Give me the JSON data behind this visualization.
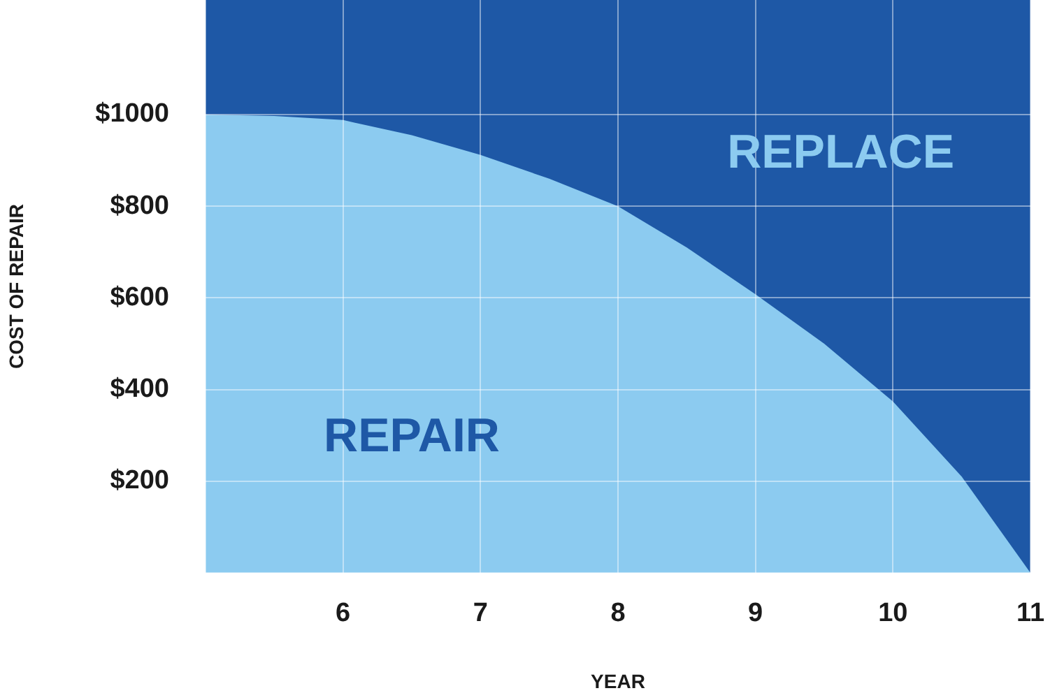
{
  "chart_data": {
    "type": "area",
    "xlabel": "YEAR",
    "ylabel": "COST OF REPAIR",
    "x": [
      5,
      5.5,
      6,
      6.5,
      7,
      7.5,
      8,
      8.5,
      9,
      9.5,
      10,
      10.5,
      11
    ],
    "series": [
      {
        "color": "#8ccbf0",
        "values": [
          1000,
          997,
          988,
          955,
          912,
          860,
          800,
          710,
          608,
          500,
          374,
          210,
          0
        ]
      }
    ],
    "xlim": [
      5,
      11
    ],
    "xticks": [
      {
        "value": 5,
        "label": null
      },
      6,
      7,
      8,
      9,
      10,
      11
    ],
    "ylim": [
      0,
      1250
    ],
    "yticks": [
      {
        "value": 0,
        "label": null
      },
      {
        "value": 200,
        "label": "$200"
      },
      {
        "value": 400,
        "label": "$400"
      },
      {
        "value": 600,
        "label": "$600"
      },
      {
        "value": 800,
        "label": "$800"
      },
      {
        "value": 1000,
        "label": "$1000"
      }
    ],
    "bands": [
      {
        "axis": "x",
        "from": 5,
        "to": 11,
        "color": "#1e58a6"
      }
    ],
    "annotations": [
      "REPAIR",
      "REPLACE"
    ],
    "grid": true,
    "legend": false,
    "marker": "none"
  }
}
